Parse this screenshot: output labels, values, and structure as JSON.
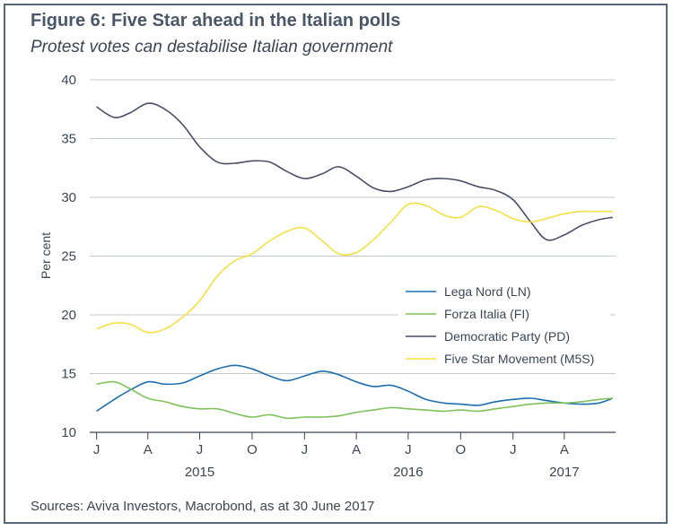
{
  "title": "Figure 6: Five Star ahead in the Italian polls",
  "subtitle": "Protest votes can destabilise Italian government",
  "source": "Sources: Aviva Investors, Macrobond, as at 30 June 2017",
  "chart_data": {
    "type": "line",
    "ylabel": "Per cent",
    "ylim": [
      10,
      40
    ],
    "yticks": [
      10,
      15,
      20,
      25,
      30,
      35,
      40
    ],
    "grid": "horizontal",
    "legend_position": "right",
    "xlim": [
      "2014-12-20",
      "2017-06-30"
    ],
    "x_ticks": [
      {
        "date": "2015-01-01",
        "label": "J"
      },
      {
        "date": "2015-04-01",
        "label": "A"
      },
      {
        "date": "2015-07-01",
        "label": "J"
      },
      {
        "date": "2015-10-01",
        "label": "O"
      },
      {
        "date": "2016-01-01",
        "label": "J"
      },
      {
        "date": "2016-04-01",
        "label": "A"
      },
      {
        "date": "2016-07-01",
        "label": "J"
      },
      {
        "date": "2016-10-01",
        "label": "O"
      },
      {
        "date": "2017-01-01",
        "label": "J"
      },
      {
        "date": "2017-04-01",
        "label": "A"
      }
    ],
    "year_labels": [
      {
        "date": "2015-07-01",
        "label": "2015"
      },
      {
        "date": "2016-07-01",
        "label": "2016"
      },
      {
        "date": "2017-04-01",
        "label": "2017"
      }
    ],
    "x": [
      "2015-01-01",
      "2015-02-01",
      "2015-03-01",
      "2015-04-01",
      "2015-05-01",
      "2015-06-01",
      "2015-07-01",
      "2015-08-01",
      "2015-09-01",
      "2015-10-01",
      "2015-11-01",
      "2015-12-01",
      "2016-01-01",
      "2016-02-01",
      "2016-03-01",
      "2016-04-01",
      "2016-05-01",
      "2016-06-01",
      "2016-07-01",
      "2016-08-01",
      "2016-09-01",
      "2016-10-01",
      "2016-11-01",
      "2016-12-01",
      "2017-01-01",
      "2017-02-01",
      "2017-03-01",
      "2017-04-01",
      "2017-05-01",
      "2017-06-01",
      "2017-06-25"
    ],
    "series": [
      {
        "name": "Lega Nord (LN)",
        "color": "#1f6fae",
        "values": [
          11.8,
          12.8,
          13.6,
          14.3,
          14.1,
          14.2,
          14.8,
          15.4,
          15.7,
          15.4,
          14.8,
          14.4,
          14.8,
          15.2,
          14.9,
          14.3,
          13.9,
          14.0,
          13.5,
          12.8,
          12.5,
          12.4,
          12.3,
          12.6,
          12.8,
          12.9,
          12.7,
          12.5,
          12.4,
          12.5,
          12.9
        ]
      },
      {
        "name": "Forza Italia (FI)",
        "color": "#7fc15b",
        "values": [
          14.1,
          14.3,
          13.7,
          12.9,
          12.6,
          12.2,
          12.0,
          12.0,
          11.6,
          11.3,
          11.5,
          11.2,
          11.3,
          11.3,
          11.4,
          11.7,
          11.9,
          12.1,
          12.0,
          11.9,
          11.8,
          11.9,
          11.8,
          12.0,
          12.2,
          12.4,
          12.5,
          12.5,
          12.6,
          12.8,
          12.9
        ]
      },
      {
        "name": "Democratic Party (PD)",
        "color": "#4a4f66",
        "values": [
          37.7,
          36.8,
          37.2,
          38.0,
          37.5,
          36.2,
          34.3,
          33.0,
          32.9,
          33.1,
          33.0,
          32.2,
          31.6,
          32.0,
          32.6,
          31.8,
          30.8,
          30.5,
          30.9,
          31.5,
          31.6,
          31.4,
          30.9,
          30.6,
          29.8,
          27.9,
          26.4,
          26.8,
          27.6,
          28.1,
          28.3
        ]
      },
      {
        "name": "Five Star Movement (M5S)",
        "color": "#f5e043",
        "values": [
          18.8,
          19.3,
          19.2,
          18.5,
          18.8,
          19.8,
          21.2,
          23.3,
          24.6,
          25.2,
          26.3,
          27.1,
          27.4,
          26.3,
          25.2,
          25.3,
          26.4,
          27.9,
          29.4,
          29.3,
          28.5,
          28.3,
          29.2,
          28.9,
          28.2,
          27.9,
          28.2,
          28.6,
          28.8,
          28.8,
          28.8
        ]
      }
    ]
  }
}
